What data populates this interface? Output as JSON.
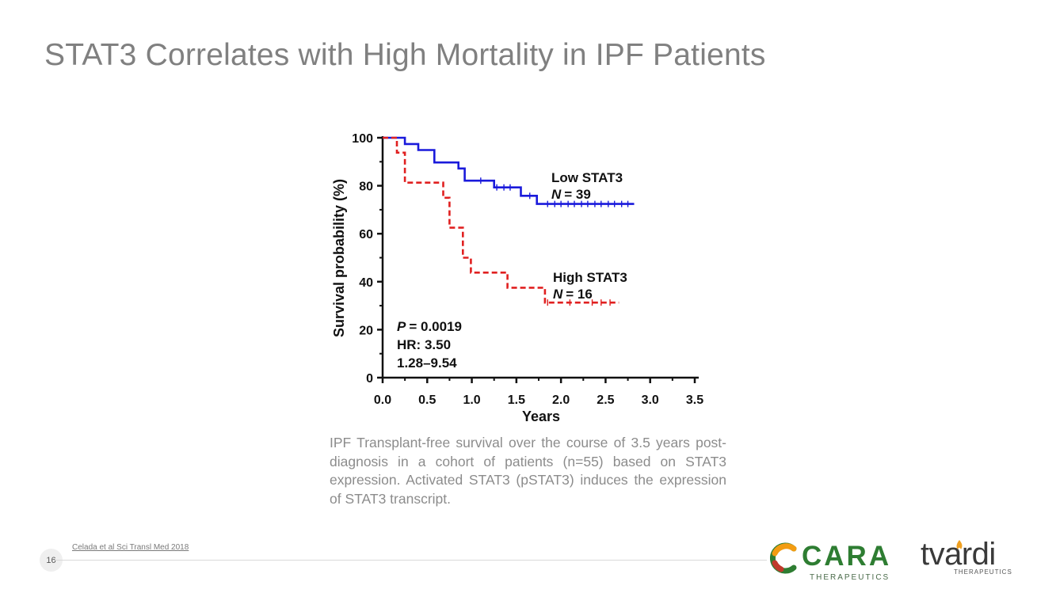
{
  "slide": {
    "title": "STAT3 Correlates with High Mortality in IPF Patients",
    "caption": "IPF Transplant-free survival over the course of 3.5 years post-diagnosis in a cohort of patients (n=55) based on STAT3 expression. Activated STAT3 (pSTAT3) induces the expression of STAT3 transcript.",
    "citation": "Celada et al Sci Transl Med 2018",
    "page_number": "16"
  },
  "logos": {
    "cara": {
      "name": "CARA",
      "subtitle": "THERAPEUTICS"
    },
    "tvardi": {
      "name": "tvardi",
      "subtitle": "THERAPEUTICS"
    }
  },
  "colors": {
    "title_text": "#808080",
    "low_stat3": "#1a1adb",
    "high_stat3": "#e02020",
    "cara_green": "#2e7d32",
    "cara_orange": "#f39c12"
  },
  "chart_data": {
    "type": "line",
    "subtype": "kaplan-meier",
    "xlabel": "Years",
    "ylabel": "Survival probability (%)",
    "xlim": [
      0,
      3.5
    ],
    "ylim": [
      0,
      100
    ],
    "xticks": [
      0,
      0.5,
      1,
      1.5,
      2,
      2.5,
      3,
      3.5
    ],
    "xtick_labels": [
      "0.0",
      "0.5",
      "1.0",
      "1.5",
      "2.0",
      "2.5",
      "3.0",
      "3.5"
    ],
    "yticks": [
      0,
      20,
      40,
      60,
      80,
      100
    ],
    "ytick_labels": [
      "0",
      "20",
      "40",
      "60",
      "80",
      "100"
    ],
    "series": [
      {
        "name": "Low STAT3",
        "n_label": "N = 39",
        "n_prefix": "N",
        "n_value": "= 39",
        "style": "solid",
        "color": "#1a1adb",
        "steps": [
          [
            0,
            100
          ],
          [
            0.25,
            97.4
          ],
          [
            0.4,
            94.9
          ],
          [
            0.58,
            89.7
          ],
          [
            0.85,
            87.2
          ],
          [
            0.92,
            82.1
          ],
          [
            1.25,
            79.3
          ],
          [
            1.55,
            75.8
          ],
          [
            1.73,
            72.4
          ],
          [
            2.82,
            72.4
          ]
        ],
        "censor_times": [
          1.1,
          1.28,
          1.36,
          1.43,
          1.65,
          1.85,
          1.93,
          2.0,
          2.08,
          2.15,
          2.23,
          2.3,
          2.38,
          2.45,
          2.53,
          2.6,
          2.68,
          2.75
        ]
      },
      {
        "name": "High STAT3",
        "n_label": "N = 16",
        "n_prefix": "N",
        "n_value": "= 16",
        "style": "dashed",
        "color": "#e02020",
        "steps": [
          [
            0,
            100
          ],
          [
            0.16,
            93.8
          ],
          [
            0.25,
            81.3
          ],
          [
            0.68,
            75.0
          ],
          [
            0.75,
            62.5
          ],
          [
            0.9,
            50.0
          ],
          [
            0.99,
            43.8
          ],
          [
            1.4,
            37.5
          ],
          [
            1.82,
            31.3
          ],
          [
            2.65,
            31.3
          ]
        ],
        "censor_times": [
          1.85,
          2.1,
          2.35,
          2.45,
          2.55
        ]
      }
    ],
    "annotations": {
      "p_label": "P",
      "p_value": "= 0.0019",
      "hr": "HR: 3.50",
      "ci": "1.28–9.54"
    }
  }
}
